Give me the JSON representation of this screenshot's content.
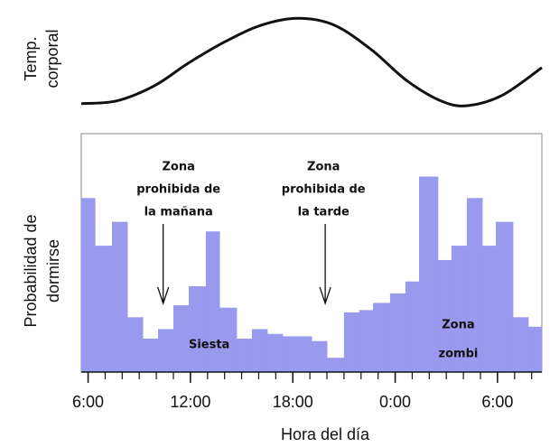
{
  "chart_data": [
    {
      "type": "line",
      "ylabel_lines": [
        "Temp.",
        "corporal"
      ],
      "x": [
        5.6,
        7.7,
        9.9,
        11.9,
        14.1,
        16.2,
        18.3,
        20.4,
        22.6,
        24.7,
        26.8,
        28.3,
        30.3,
        32.6
      ],
      "values": [
        5,
        8,
        24,
        48,
        71,
        88,
        95,
        88,
        62,
        29,
        7,
        3,
        14,
        43
      ],
      "color": "#111111",
      "xlim": [
        5.6,
        32.6
      ],
      "ylim": [
        0,
        100
      ]
    },
    {
      "type": "histogram",
      "ylabel_lines": [
        "Probabilidad de",
        "dormirse"
      ],
      "xlabel": "Hora del día",
      "bins": [
        5.6,
        6.4,
        7.4,
        8.3,
        9.2,
        10.1,
        11.0,
        11.9,
        12.9,
        13.7,
        14.7,
        15.6,
        16.5,
        17.4,
        18.2,
        19.1,
        20.0,
        21.0,
        21.9,
        22.7,
        23.7,
        24.6,
        25.4,
        26.5,
        27.3,
        28.2,
        29.1,
        29.9,
        30.9,
        31.8,
        32.6
      ],
      "values": [
        73,
        53,
        63,
        23,
        14,
        18,
        28,
        36,
        59,
        27,
        14,
        18,
        16,
        15,
        15,
        13,
        6,
        25,
        26,
        29,
        33,
        38,
        82,
        47,
        53,
        73,
        53,
        63,
        23,
        19
      ],
      "color": "#9999ee",
      "xlim": [
        5.6,
        32.6
      ],
      "ylim": [
        0,
        100
      ],
      "xticks": [
        {
          "value": 6,
          "label": "6:00"
        },
        {
          "value": 12,
          "label": "12:00"
        },
        {
          "value": 18,
          "label": "18:00"
        },
        {
          "value": 24,
          "label": "0:00"
        },
        {
          "value": 30,
          "label": "6:00"
        }
      ],
      "xminor_ticks": [
        6,
        7,
        8,
        9,
        10,
        11,
        12,
        13,
        14,
        15,
        16,
        17,
        18,
        19,
        20,
        21,
        22,
        23,
        24,
        25,
        26,
        27,
        28,
        29,
        30,
        31,
        32
      ],
      "annotations": [
        {
          "lines": [
            "Zona",
            "prohibida de",
            "la mañana"
          ],
          "arrow": true,
          "x": 10.4,
          "cx": 11.3
        },
        {
          "lines": [
            "Zona",
            "prohibida de",
            "la tarde"
          ],
          "arrow": true,
          "x": 19.9,
          "cx": 19.8
        },
        {
          "lines": [
            "Siesta"
          ],
          "arrow": false,
          "cx": 13.1
        },
        {
          "lines": [
            "Zona",
            "zombi"
          ],
          "arrow": false,
          "cx": 27.7
        }
      ]
    }
  ]
}
